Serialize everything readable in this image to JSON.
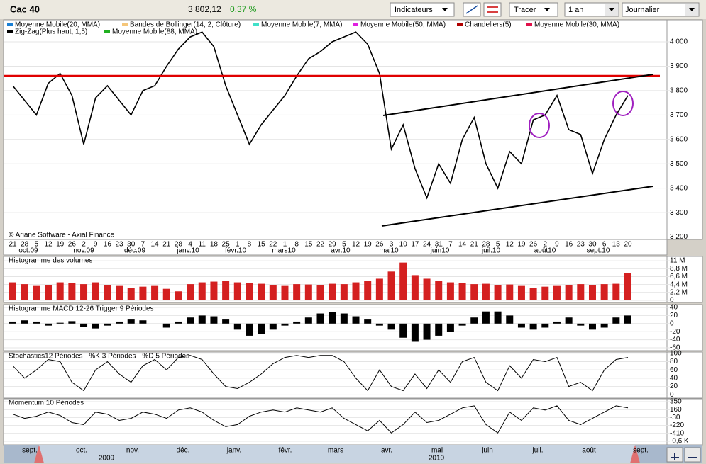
{
  "toolbar": {
    "title": "Cac 40",
    "price": "3 802,12",
    "change": "0,37 %",
    "indicators": "Indicateurs",
    "draw": "Tracer",
    "period": "1 an",
    "interval": "Journalier"
  },
  "legend": [
    {
      "label": "Moyenne Mobile(20, MMA)",
      "color": "#1a7fd4"
    },
    {
      "label": "Bandes de Bollinger(14, 2, Clôture)",
      "color": "#f5c67a"
    },
    {
      "label": "Moyenne Mobile(7, MMA)",
      "color": "#40e0c8"
    },
    {
      "label": "Moyenne Mobile(50, MMA)",
      "color": "#e020e0"
    },
    {
      "label": "Chandeliers(5)",
      "color": "#b00000"
    },
    {
      "label": "Moyenne Mobile(30, MMA)",
      "color": "#e0104a"
    },
    {
      "label": "Zig-Zag(Plus haut, 1,5)",
      "color": "#000000"
    },
    {
      "label": "Moyenne Mobile(88, MMA)",
      "color": "#20b020"
    }
  ],
  "copyright": "© Ariane Software - Axial Finance",
  "x_axis": {
    "days": [
      "21",
      "28",
      "5",
      "12",
      "19",
      "26",
      "2",
      "9",
      "16",
      "23",
      "30",
      "7",
      "14",
      "21",
      "28",
      "4",
      "11",
      "18",
      "25",
      "1",
      "8",
      "15",
      "22",
      "1",
      "8",
      "15",
      "22",
      "29",
      "5",
      "12",
      "19",
      "26",
      "3",
      "10",
      "17",
      "24",
      "31",
      "7",
      "14",
      "21",
      "28",
      "5",
      "12",
      "19",
      "26",
      "2",
      "9",
      "16",
      "23",
      "30",
      "6",
      "13",
      "20"
    ],
    "months": [
      "oct.09",
      "nov.09",
      "déc.09",
      "janv.10",
      "févr.10",
      "mars10",
      "avr.10",
      "mai10",
      "juin10",
      "juil.10",
      "août10",
      "sept.10"
    ]
  },
  "price_panel": {
    "values": [
      3820,
      3760,
      3700,
      3830,
      3870,
      3780,
      3580,
      3770,
      3820,
      3760,
      3700,
      3800,
      3820,
      3900,
      3970,
      4020,
      4040,
      3980,
      3820,
      3700,
      3580,
      3660,
      3720,
      3780,
      3860,
      3930,
      3960,
      4000,
      4020,
      4040,
      3990,
      3870,
      3560,
      3660,
      3480,
      3360,
      3500,
      3420,
      3600,
      3690,
      3500,
      3400,
      3550,
      3500,
      3680,
      3700,
      3780,
      3640,
      3620,
      3460,
      3600,
      3700,
      3780
    ],
    "ylim": [
      3190,
      4090
    ],
    "yticks": [
      {
        "value": 4000,
        "label": "4 000"
      },
      {
        "value": 3900,
        "label": "3 900"
      },
      {
        "value": 3800,
        "label": "3 800"
      },
      {
        "value": 3700,
        "label": "3 700"
      },
      {
        "value": 3600,
        "label": "3 600"
      },
      {
        "value": 3500,
        "label": "3 500"
      },
      {
        "value": 3400,
        "label": "3 400"
      },
      {
        "value": 3300,
        "label": "3 300"
      },
      {
        "value": 3200,
        "label": "3 200"
      }
    ],
    "resistance": 3860
  },
  "volume_panel": {
    "title": "Histogramme des volumes",
    "values": [
      5,
      4.5,
      4,
      4.2,
      5,
      4.8,
      4.5,
      5,
      4.3,
      4,
      3.5,
      3.8,
      4,
      3.2,
      2.5,
      4.5,
      5,
      5.2,
      5.5,
      5,
      4.8,
      4.6,
      4.2,
      4,
      4.5,
      4.4,
      4.3,
      4.6,
      4.5,
      5,
      5.5,
      6,
      8,
      10.5,
      7,
      6,
      5.5,
      5,
      4.8,
      4.5,
      4.6,
      4.2,
      4.4,
      4.0,
      3.5,
      3.8,
      4,
      4.2,
      4.5,
      4.3,
      4.5,
      4.6,
      7.5
    ],
    "ylim": [
      -0.6,
      12.2
    ],
    "yticks": [
      {
        "value": 11,
        "label": "11 M"
      },
      {
        "value": 8.8,
        "label": "8,8 M"
      },
      {
        "value": 6.6,
        "label": "6,6 M"
      },
      {
        "value": 4.4,
        "label": "4,4 M"
      },
      {
        "value": 2.2,
        "label": "2,2 M"
      },
      0
    ]
  },
  "macd_panel": {
    "title": "Histogramme MACD 12-26  Trigger 9 Périodes",
    "values": [
      5,
      8,
      5,
      -5,
      2,
      6,
      -8,
      -12,
      -5,
      5,
      10,
      8,
      0,
      -10,
      5,
      15,
      20,
      18,
      10,
      -15,
      -30,
      -25,
      -15,
      -5,
      5,
      15,
      25,
      28,
      25,
      18,
      10,
      -5,
      -15,
      -35,
      -45,
      -40,
      -30,
      -20,
      -5,
      15,
      30,
      30,
      20,
      -10,
      -15,
      -10,
      5,
      15,
      -5,
      -15,
      -10,
      15,
      20
    ],
    "ylim": [
      -67,
      47
    ],
    "yticks": [
      40,
      20,
      0,
      -20,
      -40,
      -60
    ]
  },
  "stoch_panel": {
    "title": "Stochastics12 Périodes - %K 3 Périodes - %D 5 Périodes",
    "values": [
      70,
      40,
      60,
      85,
      80,
      30,
      10,
      60,
      80,
      50,
      30,
      70,
      85,
      60,
      90,
      95,
      85,
      50,
      20,
      15,
      30,
      50,
      75,
      90,
      95,
      90,
      95,
      95,
      80,
      40,
      10,
      60,
      20,
      10,
      50,
      15,
      60,
      30,
      80,
      90,
      30,
      10,
      70,
      40,
      85,
      80,
      90,
      20,
      30,
      10,
      60,
      85,
      90
    ],
    "ylim": [
      -8,
      103
    ],
    "yticks": [
      100,
      80,
      60,
      40,
      20,
      0
    ]
  },
  "momentum_panel": {
    "title": "Momentum 10 Périodes",
    "values": [
      50,
      -50,
      0,
      100,
      20,
      -150,
      -200,
      100,
      50,
      -100,
      -50,
      100,
      50,
      -50,
      150,
      200,
      100,
      -100,
      -250,
      -200,
      0,
      100,
      150,
      100,
      200,
      150,
      100,
      200,
      -50,
      -200,
      -350,
      -100,
      -400,
      -200,
      100,
      -150,
      -100,
      50,
      200,
      250,
      -200,
      -400,
      100,
      -100,
      200,
      150,
      250,
      -100,
      -200,
      -50,
      100,
      250,
      200
    ],
    "ylim": [
      -685,
      418
    ],
    "yticks": [
      350,
      160,
      -30,
      -220,
      -410,
      {
        "value": -600,
        "label": "-0,6 K"
      }
    ]
  },
  "navigator": {
    "months": [
      "sept.",
      "oct.",
      "nov.",
      "déc.",
      "janv.",
      "févr.",
      "mars",
      "avr.",
      "mai",
      "juin",
      "juil.",
      "août",
      "sept."
    ],
    "years": [
      "2009",
      "2010"
    ]
  }
}
